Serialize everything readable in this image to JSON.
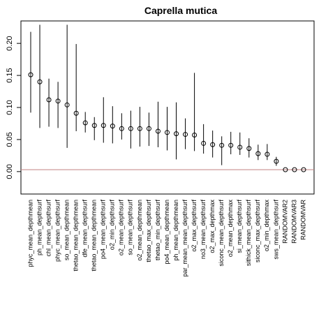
{
  "chart_data": {
    "type": "scatter",
    "title": "Caprella mutica",
    "xlabel": "",
    "ylabel": "",
    "ylim": [
      -0.035,
      0.235
    ],
    "yticks": [
      0.0,
      0.05,
      0.1,
      0.15,
      0.2
    ],
    "ytick_labels": [
      "0.00",
      "0.05",
      "0.10",
      "0.15",
      "0.20"
    ],
    "reference_line": {
      "y": 0.003,
      "color": "#c08080"
    },
    "grid": false,
    "legend": "none",
    "marker_color": "#000000",
    "categories": [
      "phyc_mean_depthmean",
      "ph_mean_depthsurf",
      "chl_mean_depthsurf",
      "phyc_mean_depthsurf",
      "so_mean_depthmean",
      "thetao_mean_depthmean",
      "dfe_mean_depthsurf",
      "thetao_mean_depthmean",
      "po4_mean_depthsurf",
      "o2_min_depthsurf",
      "o2_mean_depthsurf",
      "so_mean_depthsurf",
      "o2_mean_depthmean",
      "thetao_max_depthsurf",
      "thetao_min_depthsurf",
      "po4_mean_depthmean",
      "ph_mean_depthmean",
      "par_mean_mean_depthsurf",
      "o2_max_depthsurf",
      "no3_mean_depthsurf",
      "o2_max_depthmax",
      "siconc_mean_depthsurf",
      "o2_mean_depthmax",
      "si_mean_depthsurf",
      "sithick_mean_depthsurf",
      "siconc_max_depthsurf",
      "o2_min_depthmax",
      "sws_mean_depthsurf",
      "RANDOMVAR2",
      "RANDOMVAR3",
      "RANDOMVAR"
    ],
    "values": [
      0.151,
      0.14,
      0.112,
      0.11,
      0.104,
      0.091,
      0.076,
      0.072,
      0.072,
      0.071,
      0.067,
      0.067,
      0.067,
      0.067,
      0.063,
      0.061,
      0.059,
      0.058,
      0.057,
      0.044,
      0.042,
      0.041,
      0.041,
      0.038,
      0.036,
      0.028,
      0.027,
      0.016,
      0.003,
      0.003,
      0.003
    ],
    "lower": [
      0.092,
      0.068,
      0.07,
      0.068,
      0.037,
      0.063,
      0.061,
      0.049,
      0.045,
      0.044,
      0.05,
      0.036,
      0.039,
      0.04,
      0.038,
      0.033,
      0.019,
      0.035,
      0.032,
      0.028,
      0.022,
      0.01,
      0.027,
      0.026,
      0.022,
      0.018,
      0.018,
      0.009,
      0.003,
      0.003,
      0.003
    ],
    "upper": [
      0.218,
      0.229,
      0.145,
      0.14,
      0.229,
      0.199,
      0.093,
      0.085,
      0.116,
      0.102,
      0.091,
      0.095,
      0.101,
      0.092,
      0.109,
      0.101,
      0.108,
      0.083,
      0.154,
      0.074,
      0.064,
      0.055,
      0.062,
      0.061,
      0.052,
      0.042,
      0.043,
      0.023,
      0.003,
      0.003,
      0.003
    ]
  }
}
